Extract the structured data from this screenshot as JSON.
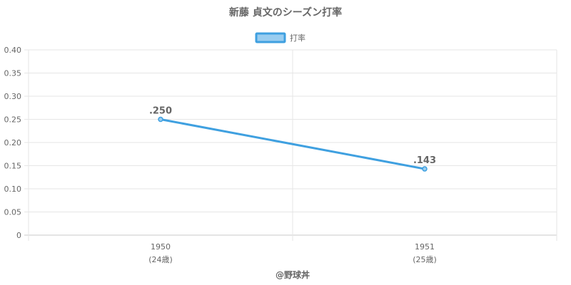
{
  "chart_data": {
    "type": "line",
    "title": "新藤 貞文のシーズン打率",
    "categories": [
      "1950",
      "1951"
    ],
    "category_sublabels": [
      "(24歳)",
      "(25歳)"
    ],
    "series": [
      {
        "name": "打率",
        "values": [
          0.25,
          0.143
        ],
        "value_labels": [
          ".250",
          ".143"
        ],
        "color": "#3fa0e0",
        "fill": "#99cdf0"
      }
    ],
    "ylim": [
      0,
      0.4
    ],
    "yticks": [
      "0",
      "0.05",
      "0.10",
      "0.15",
      "0.20",
      "0.25",
      "0.30",
      "0.35",
      "0.40"
    ],
    "grid": true,
    "legend_position": "top-center",
    "xlabel": "",
    "ylabel": ""
  },
  "footer": {
    "credit": "@野球丼"
  }
}
